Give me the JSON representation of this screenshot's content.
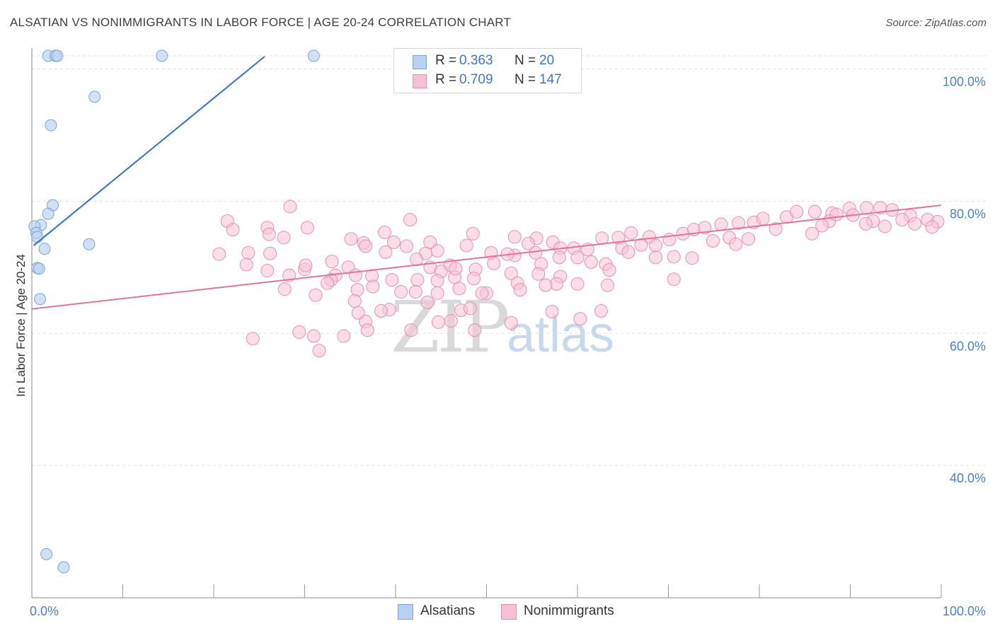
{
  "header": {
    "title": "ALSATIAN VS NONIMMIGRANTS IN LABOR FORCE | AGE 20-24 CORRELATION CHART",
    "source": "Source: ZipAtlas.com"
  },
  "watermark": {
    "zip": "ZIP",
    "atlas": "atlas"
  },
  "legend": {
    "r_label": "R =",
    "n_label": "N =",
    "rows": [
      {
        "r": "0.363",
        "n": "20"
      },
      {
        "r": "0.709",
        "n": "147"
      }
    ]
  },
  "bottom_legend": {
    "series1": "Alsatians",
    "series2": "Nonimmigrants"
  },
  "colors": {
    "blue_fill": "#b9d1f0",
    "blue_stroke": "#7ba4dc",
    "blue_line": "#2e6fd0",
    "pink_fill": "#f7c1d3",
    "pink_stroke": "#e890ad",
    "pink_line": "#e8709a",
    "grid": "#e0e0e0",
    "tick": "#4a7fd0"
  },
  "chart_data": {
    "type": "scatter",
    "title": "ALSATIAN VS NONIMMIGRANTS IN LABOR FORCE | AGE 20-24 CORRELATION CHART",
    "xlabel": "",
    "ylabel": "In Labor Force | Age 20-24",
    "xlim": [
      0,
      100
    ],
    "ylim": [
      20,
      104
    ],
    "x_tick_labels": [
      {
        "value": 0,
        "label": "0.0%"
      },
      {
        "value": 100,
        "label": "100.0%"
      }
    ],
    "y_tick_labels": [
      {
        "value": 100,
        "label": "100.0%"
      },
      {
        "value": 80,
        "label": "80.0%"
      },
      {
        "value": 60,
        "label": "60.0%"
      },
      {
        "value": 40,
        "label": "40.0%"
      }
    ],
    "series": [
      {
        "name": "Alsatians",
        "R": 0.363,
        "N": 20,
        "trend": {
          "x0": 0.2,
          "y0": 73.3,
          "x1": 25.6,
          "y1": 101.9
        },
        "points": [
          [
            1.8,
            102.0
          ],
          [
            2.6,
            102.0
          ],
          [
            2.8,
            102.0
          ],
          [
            14.3,
            102.0
          ],
          [
            31.0,
            102.0
          ],
          [
            6.9,
            95.8
          ],
          [
            2.1,
            91.5
          ],
          [
            2.3,
            79.4
          ],
          [
            1.8,
            78.1
          ],
          [
            1.0,
            76.4
          ],
          [
            0.3,
            76.2
          ],
          [
            0.5,
            75.2
          ],
          [
            0.6,
            74.6
          ],
          [
            1.4,
            72.8
          ],
          [
            6.3,
            73.5
          ],
          [
            0.6,
            69.9
          ],
          [
            0.8,
            69.8
          ],
          [
            0.9,
            65.2
          ],
          [
            1.6,
            26.6
          ],
          [
            3.5,
            24.6
          ]
        ]
      },
      {
        "name": "Nonimmigrants",
        "R": 0.709,
        "N": 147,
        "trend": {
          "x0": 0,
          "y0": 63.7,
          "x1": 100,
          "y1": 79.4
        },
        "points": [
          [
            21.5,
            77.0
          ],
          [
            25.9,
            76.0
          ],
          [
            28.4,
            79.2
          ],
          [
            30.3,
            76.0
          ],
          [
            41.6,
            77.2
          ],
          [
            26.1,
            75.0
          ],
          [
            22.1,
            75.7
          ],
          [
            38.8,
            75.3
          ],
          [
            35.1,
            74.3
          ],
          [
            36.5,
            73.7
          ],
          [
            39.8,
            73.8
          ],
          [
            43.8,
            73.8
          ],
          [
            48.5,
            75.1
          ],
          [
            44.6,
            72.5
          ],
          [
            55.5,
            74.4
          ],
          [
            47.8,
            73.3
          ],
          [
            23.8,
            72.2
          ],
          [
            26.2,
            72.1
          ],
          [
            27.7,
            74.5
          ],
          [
            36.7,
            73.2
          ],
          [
            41.2,
            73.2
          ],
          [
            43.3,
            72.1
          ],
          [
            38.9,
            72.3
          ],
          [
            42.3,
            71.2
          ],
          [
            53.1,
            74.6
          ],
          [
            54.6,
            73.6
          ],
          [
            57.3,
            73.8
          ],
          [
            58.1,
            72.9
          ],
          [
            59.6,
            72.9
          ],
          [
            61.1,
            72.7
          ],
          [
            62.7,
            74.4
          ],
          [
            64.5,
            74.5
          ],
          [
            65.9,
            75.2
          ],
          [
            67.9,
            74.6
          ],
          [
            67.0,
            73.4
          ],
          [
            68.6,
            73.3
          ],
          [
            70.1,
            74.2
          ],
          [
            71.6,
            75.1
          ],
          [
            72.8,
            75.7
          ],
          [
            74.0,
            76.0
          ],
          [
            75.8,
            76.5
          ],
          [
            77.7,
            76.7
          ],
          [
            79.4,
            76.8
          ],
          [
            80.4,
            77.4
          ],
          [
            83.0,
            77.6
          ],
          [
            84.1,
            78.4
          ],
          [
            86.1,
            78.4
          ],
          [
            88.0,
            78.2
          ],
          [
            89.9,
            78.9
          ],
          [
            91.8,
            79.0
          ],
          [
            93.3,
            79.0
          ],
          [
            94.6,
            78.7
          ],
          [
            96.6,
            77.8
          ],
          [
            98.5,
            77.2
          ],
          [
            99.6,
            76.9
          ],
          [
            20.6,
            72.0
          ],
          [
            30.0,
            69.7
          ],
          [
            34.8,
            70.0
          ],
          [
            25.9,
            69.5
          ],
          [
            33.0,
            70.9
          ],
          [
            43.8,
            70.0
          ],
          [
            48.8,
            69.7
          ],
          [
            50.8,
            70.6
          ],
          [
            46.0,
            70.3
          ],
          [
            56.0,
            70.5
          ],
          [
            61.5,
            70.8
          ],
          [
            63.1,
            70.5
          ],
          [
            70.6,
            71.6
          ],
          [
            72.6,
            71.4
          ],
          [
            23.6,
            70.4
          ],
          [
            28.3,
            68.8
          ],
          [
            35.6,
            68.8
          ],
          [
            30.1,
            70.3
          ],
          [
            33.4,
            68.8
          ],
          [
            45.0,
            69.4
          ],
          [
            46.5,
            68.5
          ],
          [
            53.1,
            71.8
          ],
          [
            58.0,
            71.5
          ],
          [
            60.0,
            71.5
          ],
          [
            64.9,
            72.9
          ],
          [
            68.6,
            71.5
          ],
          [
            50.5,
            72.2
          ],
          [
            52.3,
            72.0
          ],
          [
            55.4,
            72.2
          ],
          [
            52.7,
            69.1
          ],
          [
            46.6,
            69.8
          ],
          [
            58.1,
            68.6
          ],
          [
            63.5,
            69.6
          ],
          [
            65.6,
            72.3
          ],
          [
            32.9,
            68.1
          ],
          [
            27.8,
            66.7
          ],
          [
            35.8,
            66.6
          ],
          [
            37.4,
            68.7
          ],
          [
            39.6,
            68.1
          ],
          [
            42.4,
            68.1
          ],
          [
            42.2,
            66.3
          ],
          [
            44.6,
            68.0
          ],
          [
            47.0,
            66.8
          ],
          [
            48.6,
            68.3
          ],
          [
            50.0,
            66.1
          ],
          [
            53.4,
            67.6
          ],
          [
            55.7,
            69.0
          ],
          [
            57.7,
            67.5
          ],
          [
            60.0,
            67.5
          ],
          [
            63.3,
            67.3
          ],
          [
            35.5,
            64.9
          ],
          [
            32.5,
            67.6
          ],
          [
            37.5,
            67.1
          ],
          [
            40.6,
            66.3
          ],
          [
            44.6,
            66.1
          ],
          [
            49.5,
            66.1
          ],
          [
            53.7,
            66.6
          ],
          [
            56.5,
            67.3
          ],
          [
            31.2,
            65.8
          ],
          [
            35.9,
            63.1
          ],
          [
            39.3,
            63.6
          ],
          [
            47.2,
            63.5
          ],
          [
            36.7,
            61.8
          ],
          [
            43.5,
            64.7
          ],
          [
            48.2,
            63.8
          ],
          [
            46.1,
            61.9
          ],
          [
            57.2,
            63.3
          ],
          [
            62.6,
            63.4
          ],
          [
            24.3,
            59.2
          ],
          [
            29.4,
            60.2
          ],
          [
            31.0,
            59.6
          ],
          [
            31.6,
            57.4
          ],
          [
            34.3,
            59.6
          ],
          [
            38.4,
            63.4
          ],
          [
            60.3,
            62.2
          ],
          [
            36.9,
            60.5
          ],
          [
            41.7,
            60.5
          ],
          [
            44.7,
            61.7
          ],
          [
            48.7,
            60.5
          ],
          [
            52.7,
            61.6
          ],
          [
            70.6,
            68.2
          ],
          [
            74.9,
            74.0
          ],
          [
            76.7,
            74.5
          ],
          [
            77.4,
            73.5
          ],
          [
            78.8,
            74.3
          ],
          [
            81.8,
            75.8
          ],
          [
            85.8,
            75.1
          ],
          [
            87.7,
            77.0
          ],
          [
            88.5,
            78.0
          ],
          [
            90.3,
            77.9
          ],
          [
            92.5,
            77.0
          ],
          [
            93.8,
            76.2
          ],
          [
            95.7,
            77.2
          ],
          [
            97.1,
            76.6
          ],
          [
            99.0,
            76.1
          ],
          [
            86.9,
            76.3
          ],
          [
            91.7,
            76.6
          ]
        ]
      }
    ]
  }
}
